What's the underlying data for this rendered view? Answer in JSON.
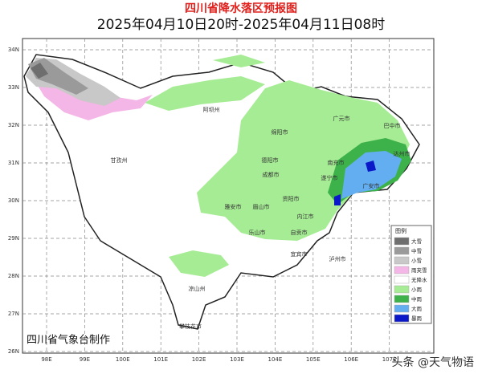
{
  "title": "四川省降水落区预报图",
  "subtitle": "2025年04月10日20时-2025年04月11日08时",
  "lat_labels": [
    "34N",
    "33N",
    "32N",
    "31N",
    "30N",
    "29N",
    "28N",
    "27N",
    "26N"
  ],
  "lon_labels": [
    "98E",
    "99E",
    "100E",
    "101E",
    "102E",
    "103E",
    "104E",
    "105E",
    "106E",
    "107E"
  ],
  "cities": [
    "阿坝州",
    "广元市",
    "巴中市",
    "绵阳市",
    "达州市",
    "德阳市",
    "南充市",
    "成都市",
    "甘孜州",
    "遂宁市",
    "广安市",
    "资阳市",
    "雅安市",
    "眉山市",
    "内江市",
    "乐山市",
    "自贡市",
    "宜宾市",
    "泸州市",
    "凉山州",
    "攀枝花市"
  ],
  "legend": {
    "title": "图例",
    "items": [
      {
        "label": "大雪",
        "color": "#6e6e6e"
      },
      {
        "label": "中雪",
        "color": "#9a9a9a"
      },
      {
        "label": "小雪",
        "color": "#c8c8c8"
      },
      {
        "label": "雨夹雪",
        "color": "#f4b6e6"
      },
      {
        "label": "无降水",
        "color": "#ffffff"
      },
      {
        "label": "小雨",
        "color": "#a6ec94"
      },
      {
        "label": "中雨",
        "color": "#3db24a"
      },
      {
        "label": "大雨",
        "color": "#62aef0"
      },
      {
        "label": "暴雨",
        "color": "#0a18c8"
      }
    ]
  },
  "credit": "四川省气象台制作",
  "watermark": "头条 @天气物语"
}
